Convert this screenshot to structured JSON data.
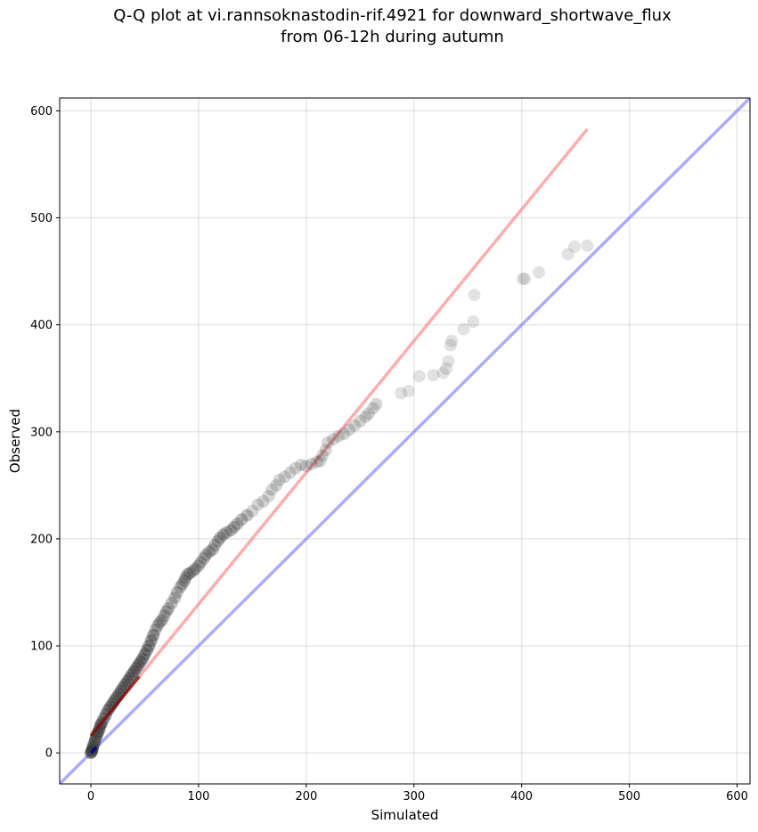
{
  "chart_data": {
    "type": "scatter",
    "title_line1": "Q-Q plot at vi.rannsoknastodin-rif.4921 for downward_shortwave_flux",
    "title_line2": "from 06-12h during autumn",
    "xlabel": "Simulated",
    "ylabel": "Observed",
    "xlim": [
      -29,
      612
    ],
    "ylim": [
      -29,
      612
    ],
    "xticks": [
      0,
      100,
      200,
      300,
      400,
      500,
      600
    ],
    "yticks": [
      0,
      100,
      200,
      300,
      400,
      500,
      600
    ],
    "grid": true,
    "colors": {
      "points": "#333333",
      "fit_line": "#ff8080",
      "identity_line": "#8080ff",
      "low_segment": "#8b0000",
      "origin_cluster": "#00008b"
    },
    "series": [
      {
        "kind": "points",
        "x": [
          0,
          0.5,
          1,
          1.5,
          2,
          3,
          4,
          5,
          6,
          7,
          8,
          9,
          10,
          12,
          14,
          16,
          18,
          20,
          22,
          24,
          26,
          28,
          30,
          32,
          34,
          36,
          38,
          40,
          42,
          44,
          46,
          48,
          50,
          52,
          54,
          56,
          58,
          60,
          62,
          64,
          66,
          68,
          70,
          72,
          75,
          78,
          80,
          83,
          85,
          87,
          88,
          90,
          92,
          95,
          97,
          100,
          102,
          105,
          107,
          110,
          113,
          115,
          118,
          120,
          123,
          126,
          130,
          133,
          136,
          140,
          145,
          150,
          155,
          160,
          165,
          168,
          172,
          175,
          180,
          185,
          190,
          195,
          200,
          205,
          210,
          213,
          215,
          218,
          220,
          225,
          230,
          235,
          240,
          245,
          250,
          255,
          258,
          262,
          265,
          288,
          295,
          305,
          318,
          327,
          330,
          332,
          334,
          335,
          346,
          355,
          356,
          401,
          403,
          416,
          443,
          449,
          461
        ],
        "y": [
          0,
          1,
          2,
          4,
          6,
          9,
          12,
          15,
          18,
          20,
          23,
          26,
          28,
          32,
          36,
          40,
          43,
          46,
          49,
          52,
          55,
          58,
          61,
          64,
          67,
          70,
          73,
          76,
          79,
          82,
          85,
          88,
          92,
          96,
          100,
          105,
          110,
          115,
          119,
          122,
          124,
          128,
          132,
          135,
          140,
          145,
          150,
          155,
          158,
          161,
          164,
          167,
          168,
          170,
          172,
          175,
          178,
          182,
          185,
          188,
          190,
          194,
          198,
          201,
          204,
          206,
          208,
          211,
          214,
          218,
          222,
          226,
          232,
          235,
          240,
          246,
          250,
          255,
          258,
          262,
          266,
          269,
          268,
          270,
          272,
          273,
          278,
          283,
          290,
          293,
          296,
          298,
          302,
          306,
          310,
          314,
          317,
          322,
          326,
          336,
          338,
          352,
          353,
          355,
          359,
          366,
          381,
          385,
          396,
          403,
          428,
          443,
          443,
          449,
          466,
          473,
          474
        ]
      },
      {
        "kind": "line",
        "name": "fit",
        "x": [
          0,
          461
        ],
        "y": [
          16,
          583
        ]
      },
      {
        "kind": "line",
        "name": "identity",
        "x": [
          -29,
          612
        ],
        "y": [
          -29,
          612
        ]
      }
    ]
  }
}
